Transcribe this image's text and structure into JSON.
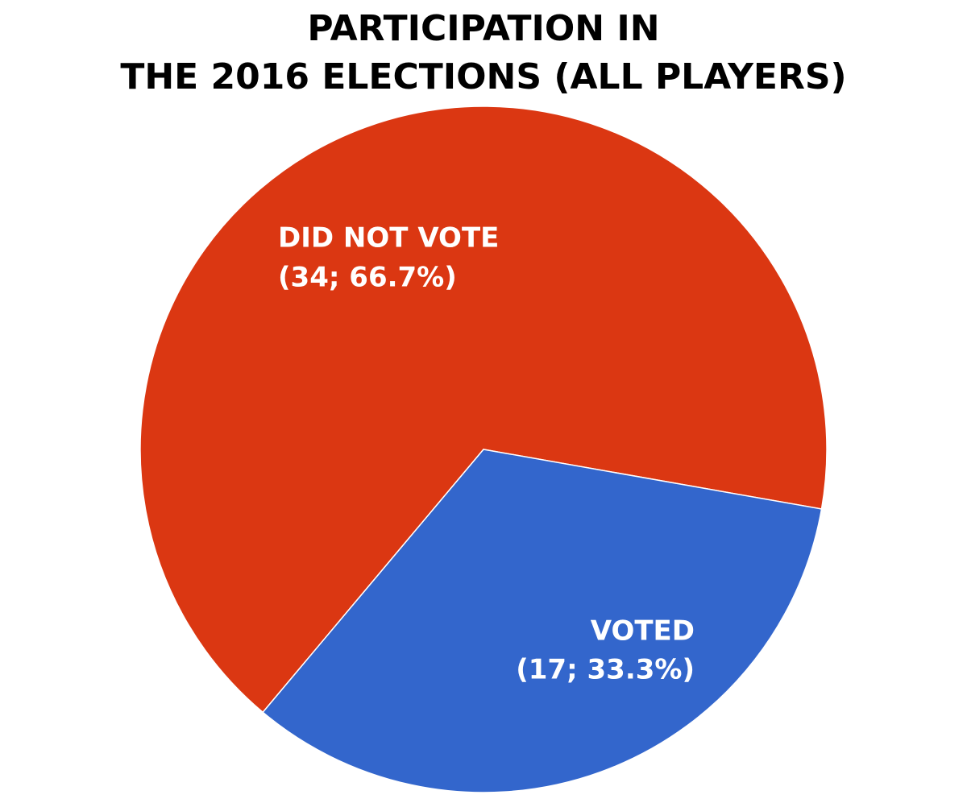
{
  "chart_data": {
    "type": "pie",
    "title": [
      "PARTICIPATION IN",
      "THE 2016 ELECTIONS (ALL PLAYERS)"
    ],
    "categories": [
      "DID NOT VOTE",
      "VOTED"
    ],
    "values": [
      34,
      17
    ],
    "value_labels": [
      "(34; 66.7%)",
      "(17; 33.3%)"
    ],
    "colors": [
      "#db3712",
      "#3366cc"
    ]
  }
}
